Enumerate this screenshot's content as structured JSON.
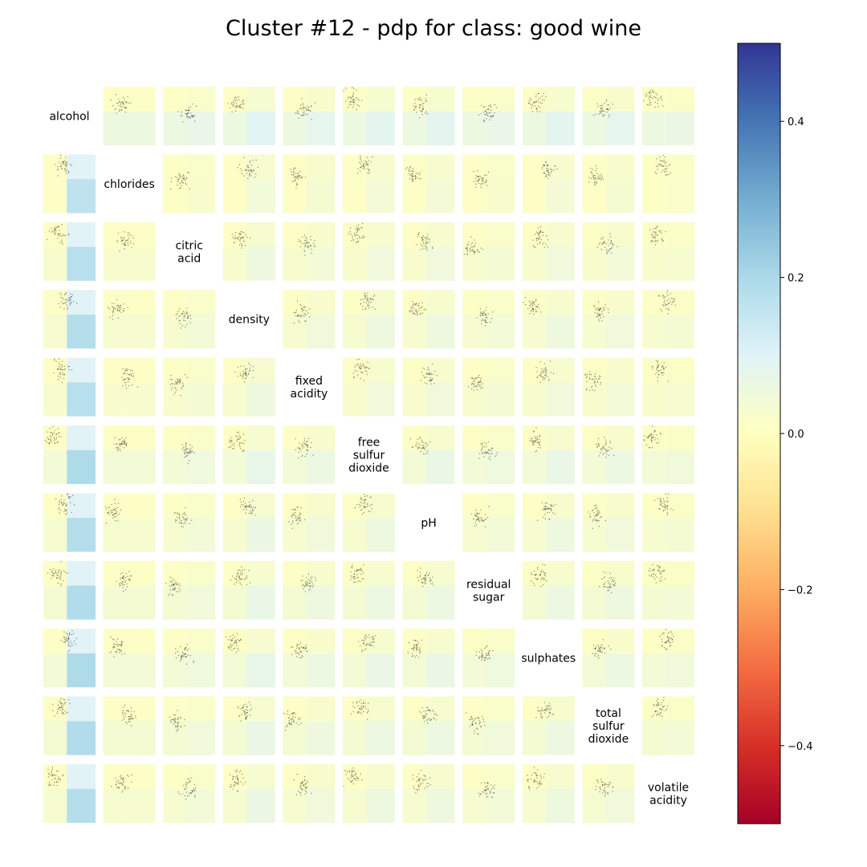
{
  "chart_data": {
    "type": "heatmap",
    "title": "Cluster #12 - pdp for class: good wine",
    "features": [
      "alcohol",
      "chlorides",
      "citric acid",
      "density",
      "fixed acidity",
      "free sulfur dioxide",
      "pH",
      "residual sugar",
      "sulphates",
      "total sulfur dioxide",
      "volatile acidity"
    ],
    "diagonal_labels": [
      [
        "alcohol"
      ],
      [
        "chlorides"
      ],
      [
        "citric",
        "acid"
      ],
      [
        "density"
      ],
      [
        "fixed",
        "acidity"
      ],
      [
        "free",
        "sulfur",
        "dioxide"
      ],
      [
        "pH"
      ],
      [
        "residual",
        "sugar"
      ],
      [
        "sulphates"
      ],
      [
        "total",
        "sulfur",
        "dioxide"
      ],
      [
        "volatile",
        "acidity"
      ]
    ],
    "colorbar": {
      "colormap": "RdYlBu",
      "vmin": -0.5,
      "vmax": 0.5,
      "ticks": [
        0.4,
        0.2,
        0.0,
        -0.2,
        -0.4
      ],
      "tick_labels": [
        "0.4",
        "0.2",
        "0.0",
        "−0.2",
        "−0.4"
      ],
      "colors": [
        "#a50026",
        "#d73027",
        "#f46d43",
        "#fdae61",
        "#fee090",
        "#ffffbf",
        "#e0f3f8",
        "#abd9e9",
        "#74add1",
        "#4575b4",
        "#313695"
      ]
    },
    "row_feature_effect": [
      0.08,
      0.0,
      0.02,
      0.03,
      0.02,
      0.05,
      0.03,
      0.04,
      0.05,
      0.04,
      0.03
    ],
    "col_feature_effect": [
      0.22,
      0.0,
      0.02,
      0.05,
      0.03,
      0.04,
      0.04,
      0.02,
      0.04,
      0.03,
      0.01
    ],
    "grid": false
  }
}
